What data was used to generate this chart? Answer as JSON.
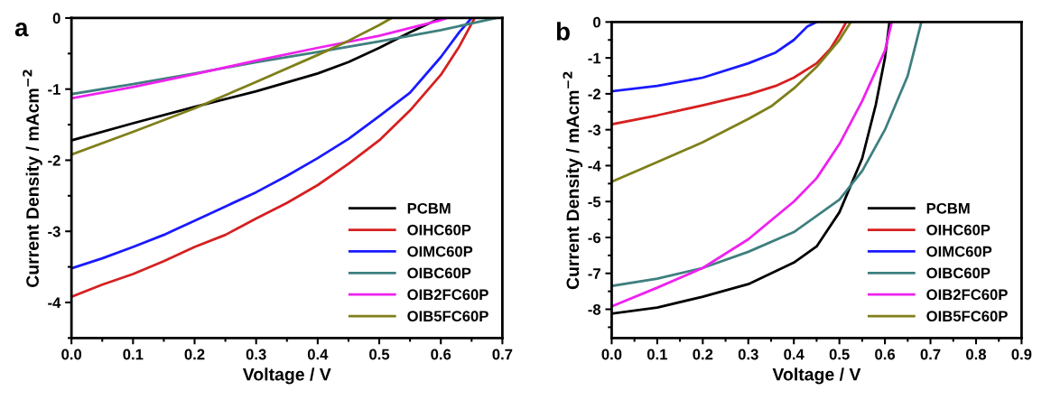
{
  "chart_data": [
    {
      "type": "line",
      "xlabel": "Voltage / V",
      "ylabel": "Current Density / mAcm$^{−2}$",
      "annotations": [
        "a"
      ],
      "xlim": [
        0,
        0.7
      ],
      "ylim": [
        -4.5,
        0
      ],
      "xticks": [
        {
          "value": 0,
          "label": "0.0"
        },
        {
          "value": 0.05,
          "label": null
        },
        {
          "value": 0.1,
          "label": "0.1"
        },
        {
          "value": 0.15,
          "label": null
        },
        {
          "value": 0.2,
          "label": "0.2"
        },
        {
          "value": 0.25,
          "label": null
        },
        {
          "value": 0.3,
          "label": "0.3"
        },
        {
          "value": 0.35,
          "label": null
        },
        {
          "value": 0.4,
          "label": "0.4"
        },
        {
          "value": 0.45,
          "label": null
        },
        {
          "value": 0.5,
          "label": "0.5"
        },
        {
          "value": 0.55,
          "label": null
        },
        {
          "value": 0.6,
          "label": "0.6"
        },
        {
          "value": 0.65,
          "label": null
        },
        {
          "value": 0.7,
          "label": "0.7"
        }
      ],
      "yticks": [
        0,
        {
          "value": -0.5,
          "label": null
        },
        -1,
        {
          "value": -1.5,
          "label": null
        },
        -2,
        {
          "value": -2.5,
          "label": null
        },
        -3,
        {
          "value": -3.5,
          "label": null
        },
        -4,
        {
          "value": -4.5,
          "label": null
        }
      ],
      "legend": "lower right",
      "grid": false,
      "marker": "none",
      "line_style": "solid",
      "series": [
        {
          "name": "PCBM",
          "color": "#000000",
          "x": [
            0,
            0.1,
            0.2,
            0.3,
            0.4,
            0.45,
            0.5,
            0.55,
            0.6
          ],
          "values": [
            -1.72,
            -1.48,
            -1.25,
            -1.03,
            -0.78,
            -0.62,
            -0.42,
            -0.2,
            0
          ]
        },
        {
          "name": "OIHC60P",
          "color": "#d62020",
          "x": [
            0,
            0.05,
            0.1,
            0.15,
            0.2,
            0.25,
            0.3,
            0.35,
            0.4,
            0.45,
            0.5,
            0.55,
            0.6,
            0.63,
            0.655
          ],
          "values": [
            -3.92,
            -3.75,
            -3.6,
            -3.42,
            -3.22,
            -3.05,
            -2.82,
            -2.6,
            -2.35,
            -2.05,
            -1.72,
            -1.3,
            -0.8,
            -0.4,
            0
          ]
        },
        {
          "name": "OIMC60P",
          "color": "#1a1aff",
          "x": [
            0,
            0.05,
            0.1,
            0.15,
            0.2,
            0.25,
            0.3,
            0.35,
            0.4,
            0.45,
            0.5,
            0.55,
            0.6,
            0.63,
            0.65
          ],
          "values": [
            -3.52,
            -3.38,
            -3.22,
            -3.05,
            -2.85,
            -2.65,
            -2.45,
            -2.22,
            -1.97,
            -1.7,
            -1.38,
            -1.05,
            -0.55,
            -0.2,
            0
          ]
        },
        {
          "name": "OIBC60P",
          "color": "#3f7f7f",
          "x": [
            0,
            0.1,
            0.2,
            0.3,
            0.4,
            0.5,
            0.6,
            0.69
          ],
          "values": [
            -1.07,
            -0.93,
            -0.78,
            -0.62,
            -0.48,
            -0.33,
            -0.17,
            0
          ]
        },
        {
          "name": "OIB2FC60P",
          "color": "#ee22ee",
          "x": [
            0,
            0.1,
            0.2,
            0.3,
            0.4,
            0.5,
            0.6,
            0.61
          ],
          "values": [
            -1.13,
            -0.97,
            -0.79,
            -0.6,
            -0.42,
            -0.25,
            -0.03,
            0
          ]
        },
        {
          "name": "OIB5FC60P",
          "color": "#7f7f1a",
          "x": [
            0,
            0.1,
            0.2,
            0.3,
            0.4,
            0.45,
            0.5,
            0.52
          ],
          "values": [
            -1.92,
            -1.6,
            -1.27,
            -0.9,
            -0.52,
            -0.32,
            -0.1,
            0
          ]
        }
      ]
    },
    {
      "type": "line",
      "xlabel": "Voltage / V",
      "ylabel": "Current Density / mAcm$^{−2}$",
      "annotations": [
        "b"
      ],
      "xlim": [
        0,
        0.9
      ],
      "ylim": [
        -8.8,
        0
      ],
      "xticks": [
        {
          "value": 0,
          "label": "0.0"
        },
        {
          "value": 0.05,
          "label": null
        },
        {
          "value": 0.1,
          "label": "0.1"
        },
        {
          "value": 0.15,
          "label": null
        },
        {
          "value": 0.2,
          "label": "0.2"
        },
        {
          "value": 0.25,
          "label": null
        },
        {
          "value": 0.3,
          "label": "0.3"
        },
        {
          "value": 0.35,
          "label": null
        },
        {
          "value": 0.4,
          "label": "0.4"
        },
        {
          "value": 0.45,
          "label": null
        },
        {
          "value": 0.5,
          "label": "0.5"
        },
        {
          "value": 0.55,
          "label": null
        },
        {
          "value": 0.6,
          "label": "0.6"
        },
        {
          "value": 0.65,
          "label": null
        },
        {
          "value": 0.7,
          "label": "0.7"
        },
        {
          "value": 0.75,
          "label": null
        },
        {
          "value": 0.8,
          "label": "0.8"
        },
        {
          "value": 0.85,
          "label": null
        },
        {
          "value": 0.9,
          "label": "0.9"
        }
      ],
      "yticks": [
        0,
        {
          "value": -0.5,
          "label": null
        },
        -1,
        {
          "value": -1.5,
          "label": null
        },
        -2,
        {
          "value": -2.5,
          "label": null
        },
        -3,
        {
          "value": -3.5,
          "label": null
        },
        -4,
        {
          "value": -4.5,
          "label": null
        },
        -5,
        {
          "value": -5.5,
          "label": null
        },
        -6,
        {
          "value": -6.5,
          "label": null
        },
        -7,
        {
          "value": -7.5,
          "label": null
        },
        -8,
        {
          "value": -8.5,
          "label": null
        }
      ],
      "legend": "lower right",
      "grid": false,
      "marker": "none",
      "line_style": "solid",
      "series": [
        {
          "name": "PCBM",
          "color": "#000000",
          "x": [
            0,
            0.1,
            0.2,
            0.3,
            0.4,
            0.45,
            0.5,
            0.55,
            0.58,
            0.6,
            0.61
          ],
          "values": [
            -8.12,
            -7.95,
            -7.65,
            -7.3,
            -6.7,
            -6.25,
            -5.3,
            -3.8,
            -2.3,
            -1,
            0
          ]
        },
        {
          "name": "OIHC60P",
          "color": "#d62020",
          "x": [
            0,
            0.1,
            0.2,
            0.3,
            0.36,
            0.4,
            0.45,
            0.48,
            0.5,
            0.515
          ],
          "values": [
            -2.85,
            -2.6,
            -2.32,
            -2.02,
            -1.78,
            -1.55,
            -1.15,
            -0.75,
            -0.35,
            0
          ]
        },
        {
          "name": "OIMC60P",
          "color": "#1a1aff",
          "x": [
            0,
            0.1,
            0.2,
            0.3,
            0.36,
            0.4,
            0.43,
            0.45
          ],
          "values": [
            -1.93,
            -1.78,
            -1.55,
            -1.15,
            -0.85,
            -0.5,
            -0.12,
            0
          ]
        },
        {
          "name": "OIBC60P",
          "color": "#3f7f7f",
          "x": [
            0,
            0.1,
            0.2,
            0.3,
            0.4,
            0.5,
            0.55,
            0.6,
            0.65,
            0.68
          ],
          "values": [
            -7.35,
            -7.15,
            -6.85,
            -6.4,
            -5.85,
            -4.95,
            -4.15,
            -3.0,
            -1.5,
            0
          ]
        },
        {
          "name": "OIB2FC60P",
          "color": "#ee22ee",
          "x": [
            0,
            0.1,
            0.2,
            0.3,
            0.4,
            0.45,
            0.5,
            0.55,
            0.6,
            0.615
          ],
          "values": [
            -7.92,
            -7.4,
            -6.85,
            -6.05,
            -5.0,
            -4.35,
            -3.4,
            -2.2,
            -0.8,
            0
          ]
        },
        {
          "name": "OIB5FC60P",
          "color": "#7f7f1a",
          "x": [
            0,
            0.1,
            0.2,
            0.3,
            0.35,
            0.4,
            0.45,
            0.5,
            0.525
          ],
          "values": [
            -4.45,
            -3.9,
            -3.35,
            -2.7,
            -2.35,
            -1.85,
            -1.25,
            -0.5,
            0
          ]
        }
      ]
    }
  ]
}
